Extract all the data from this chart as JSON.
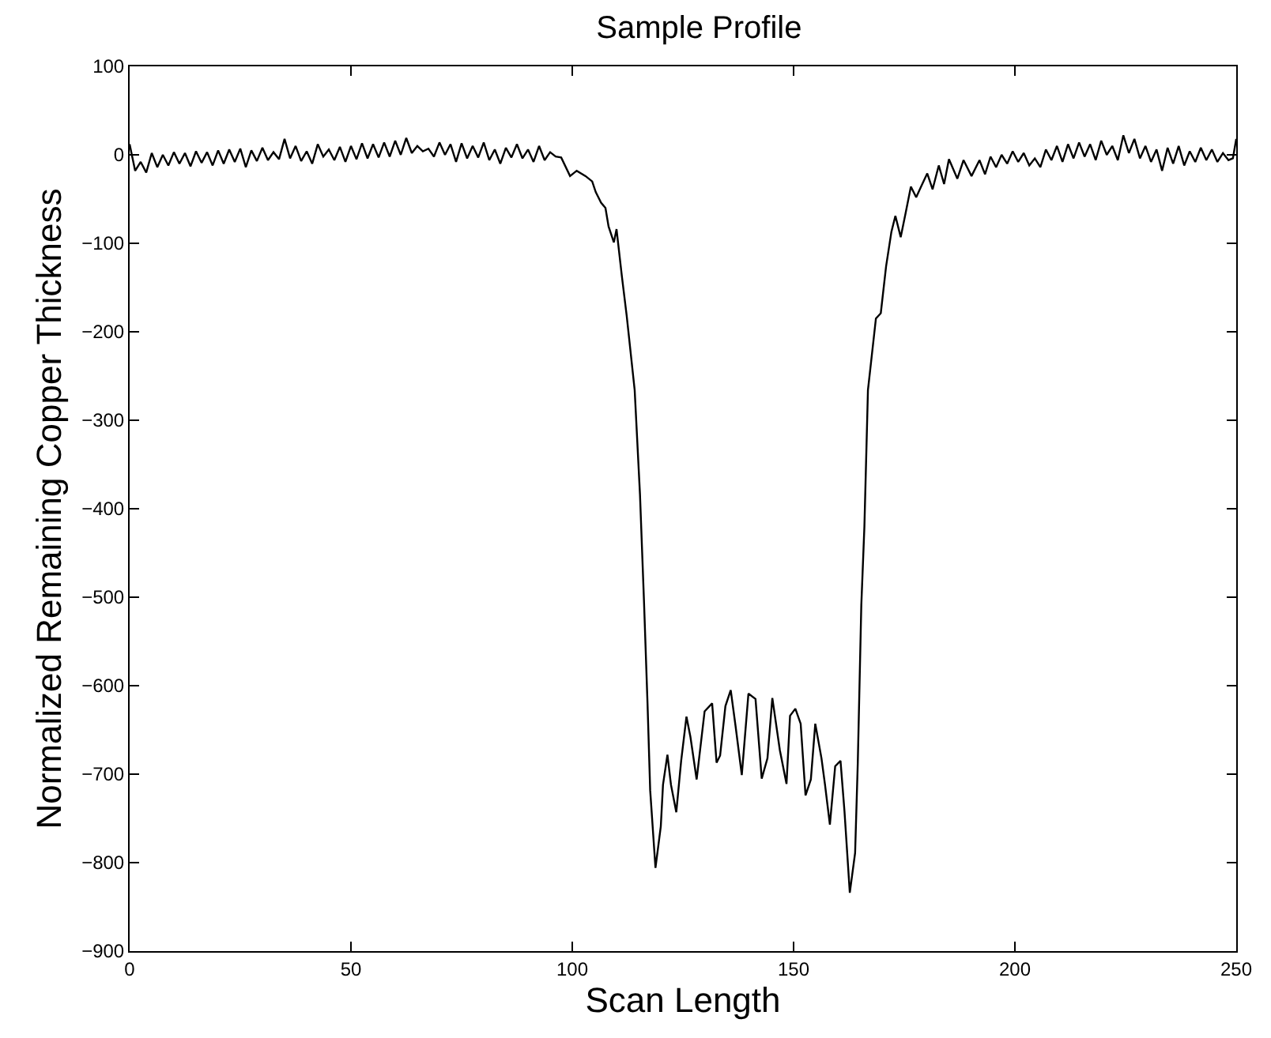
{
  "chart_data": {
    "type": "line",
    "title": "Sample Profile",
    "xlabel": "Scan Length",
    "ylabel": "Normalized Remaining Copper Thickness",
    "x": [
      0,
      1.25,
      2.5,
      3.75,
      5,
      6.25,
      7.5,
      8.75,
      10,
      11.25,
      12.5,
      13.75,
      15,
      16.25,
      17.5,
      18.75,
      20,
      21.25,
      22.5,
      23.75,
      25,
      26.25,
      27.5,
      28.75,
      30,
      31.25,
      32.5,
      33.75,
      35,
      36.25,
      37.5,
      38.75,
      40,
      41.25,
      42.5,
      43.75,
      45,
      46.25,
      47.5,
      48.75,
      50,
      51.25,
      52.5,
      53.75,
      55,
      56.25,
      57.5,
      58.75,
      60,
      61.25,
      62.5,
      63.75,
      65,
      66.25,
      67.5,
      68.75,
      70,
      71.25,
      72.5,
      73.75,
      75,
      76.25,
      77.5,
      78.75,
      80,
      81.25,
      82.5,
      83.75,
      85,
      86.25,
      87.5,
      88.75,
      90,
      91.25,
      92.5,
      93.75,
      95,
      96.25,
      97.5,
      99.5,
      101,
      103,
      104.5,
      105.3,
      106.5,
      107.5,
      108.2,
      109.4,
      110,
      111.2,
      112.3,
      114.1,
      115.3,
      116.2,
      117,
      117.6,
      118.8,
      120,
      120.5,
      121.5,
      122.3,
      123.5,
      124.6,
      125.8,
      126.7,
      128.1,
      129.9,
      131.6,
      132.6,
      133.4,
      134.6,
      135.8,
      136.9,
      138.3,
      139.8,
      141.4,
      142.8,
      144.1,
      145.2,
      146.9,
      148.4,
      149.2,
      150.4,
      151.6,
      152.7,
      153.9,
      154.9,
      156.3,
      157.1,
      158.2,
      159.4,
      160.6,
      161.5,
      162.7,
      163.9,
      164.5,
      165.3,
      166,
      166.8,
      168.6,
      169.7,
      170.9,
      172.1,
      173,
      174.2,
      175.3,
      176.5,
      177.7,
      178.8,
      180.2,
      181.4,
      182.8,
      184,
      185.1,
      187,
      188.4,
      190.2,
      192,
      193.25,
      194.5,
      195.75,
      197,
      198.25,
      199.5,
      200.75,
      202,
      203.25,
      204.5,
      205.75,
      207,
      208.25,
      209.5,
      210.75,
      212,
      213.25,
      214.5,
      215.75,
      217,
      218.25,
      219.5,
      220.75,
      222,
      223.25,
      224.5,
      225.75,
      227,
      228.25,
      229.5,
      230.75,
      232,
      233.25,
      234.5,
      235.75,
      237,
      238.25,
      239.5,
      240.75,
      242,
      243.25,
      244.5,
      245.75,
      247,
      248.25,
      249.25,
      250
    ],
    "values": [
      12,
      -18,
      -8,
      -20,
      2,
      -14,
      0,
      -12,
      3,
      -10,
      2,
      -13,
      4,
      -9,
      3,
      -12,
      5,
      -10,
      6,
      -8,
      7,
      -14,
      5,
      -7,
      8,
      -6,
      3,
      -5,
      18,
      -4,
      10,
      -7,
      4,
      -10,
      12,
      -2,
      6,
      -6,
      9,
      -8,
      10,
      -5,
      13,
      -4,
      12,
      -3,
      14,
      -2,
      16,
      0,
      19,
      2,
      10,
      4,
      7,
      -2,
      14,
      0,
      12,
      -8,
      13,
      -4,
      10,
      -3,
      14,
      -6,
      6,
      -10,
      8,
      -3,
      12,
      -4,
      6,
      -8,
      10,
      -6,
      3,
      -2,
      -3,
      -24,
      -18,
      -24,
      -30,
      -42,
      -54,
      -60,
      -81,
      -99,
      -84,
      -137,
      -182,
      -266,
      -384,
      -504,
      -620,
      -718,
      -806,
      -759,
      -712,
      -678,
      -712,
      -743,
      -685,
      -635,
      -658,
      -706,
      -629,
      -620,
      -687,
      -679,
      -623,
      -605,
      -646,
      -701,
      -609,
      -615,
      -705,
      -682,
      -614,
      -673,
      -711,
      -634,
      -626,
      -643,
      -724,
      -706,
      -643,
      -682,
      -712,
      -757,
      -691,
      -685,
      -742,
      -834,
      -789,
      -688,
      -509,
      -420,
      -266,
      -185,
      -179,
      -126,
      -87,
      -69,
      -93,
      -66,
      -36,
      -48,
      -36,
      -21,
      -39,
      -12,
      -33,
      -5,
      -27,
      -6,
      -24,
      -6,
      -22,
      -2,
      -14,
      0,
      -10,
      4,
      -8,
      2,
      -12,
      -4,
      -14,
      6,
      -6,
      10,
      -8,
      12,
      -4,
      14,
      -2,
      12,
      -6,
      16,
      0,
      10,
      -6,
      22,
      2,
      18,
      -4,
      10,
      -8,
      6,
      -18,
      8,
      -10,
      10,
      -12,
      4,
      -8,
      8,
      -6,
      6,
      -8,
      2,
      -6,
      -4,
      18
    ],
    "color": "#000000",
    "line_style": "solid",
    "marker": "none",
    "xlim": [
      0,
      250
    ],
    "xticks": [
      0,
      50,
      100,
      150,
      200,
      250
    ],
    "ylim": [
      -900,
      100
    ],
    "yticks": [
      {
        "value": -900,
        "label": "−900"
      },
      {
        "value": -800,
        "label": "−800"
      },
      {
        "value": -700,
        "label": "−700"
      },
      {
        "value": -600,
        "label": "−600"
      },
      {
        "value": -500,
        "label": "−500"
      },
      {
        "value": -400,
        "label": "−400"
      },
      {
        "value": -300,
        "label": "−300"
      },
      {
        "value": -200,
        "label": "−200"
      },
      {
        "value": -100,
        "label": "−100"
      },
      0,
      100
    ],
    "tick_labels": "xy"
  }
}
